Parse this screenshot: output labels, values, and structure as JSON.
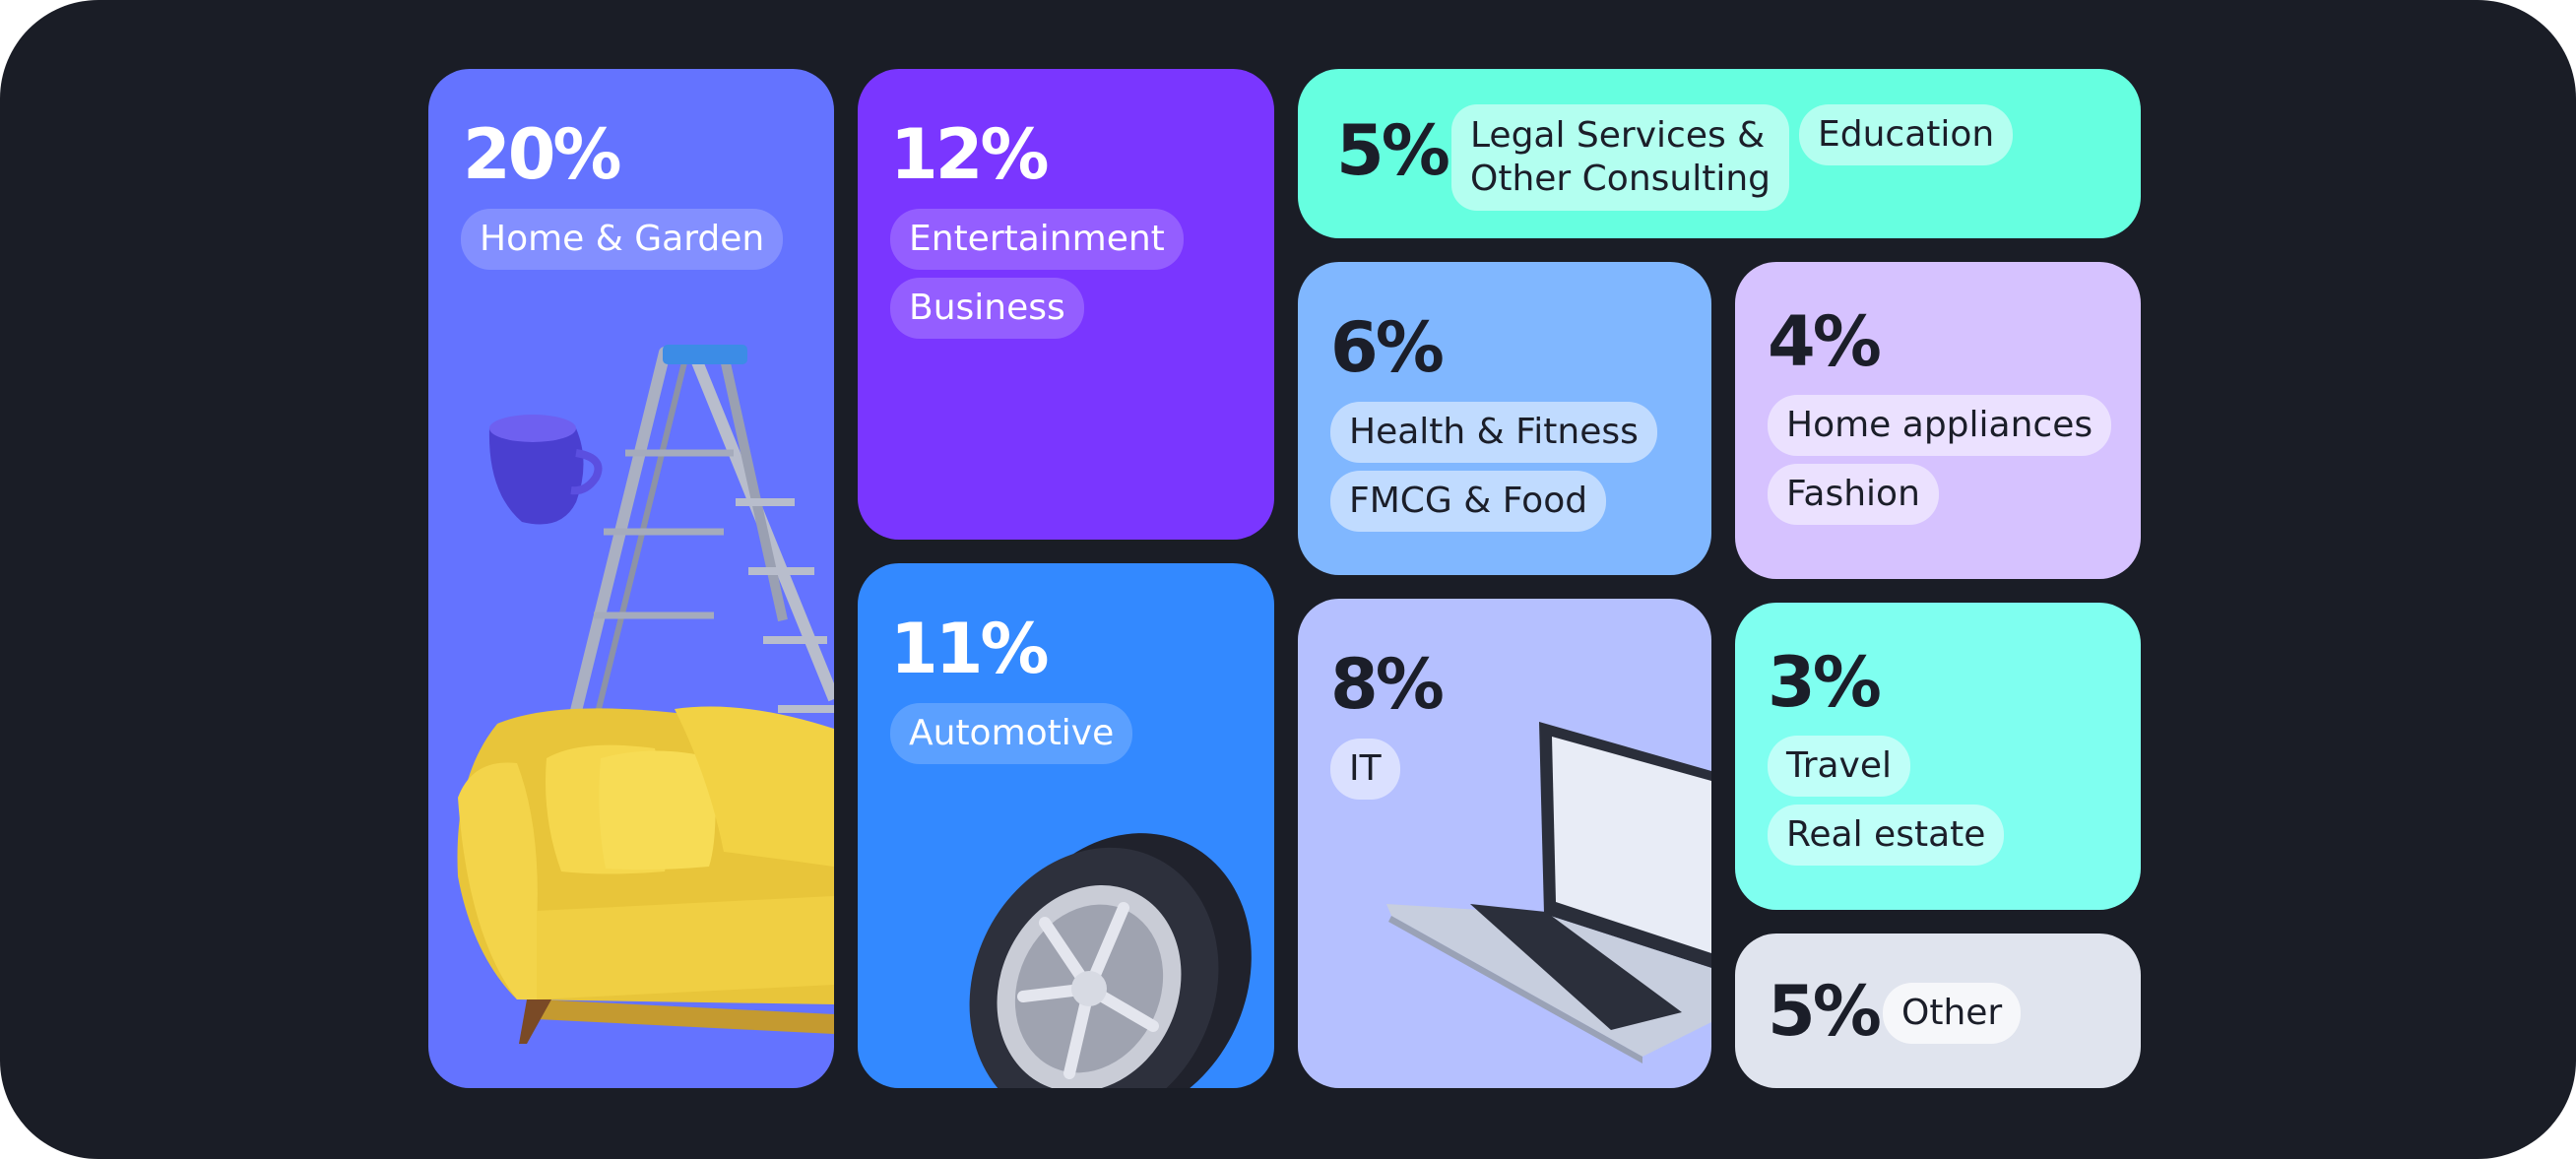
{
  "colors": {
    "background": "#1a1d26",
    "home_garden": "#6473ff",
    "entertainment": "#7a36ff",
    "automotive": "#3389ff",
    "legal": "#66ffe0",
    "health": "#80b7ff",
    "home_appliances": "#d6c2ff",
    "it": "#b5c0ff",
    "travel": "#7ffff0",
    "other": "#e0e4ee"
  },
  "categories": [
    {
      "key": "home_garden",
      "percent": "20%",
      "tags": [
        "Home & Garden"
      ],
      "illustration": "sofa-ladder-cup"
    },
    {
      "key": "entertainment",
      "percent": "12%",
      "tags": [
        "Entertainment",
        "Business"
      ]
    },
    {
      "key": "automotive",
      "percent": "11%",
      "tags": [
        "Automotive"
      ],
      "illustration": "tire"
    },
    {
      "key": "legal",
      "percent": "5%",
      "tags": [
        "Legal Services &\nOther Consulting",
        "Education"
      ]
    },
    {
      "key": "health",
      "percent": "6%",
      "tags": [
        "Health & Fitness",
        "FMCG & Food"
      ]
    },
    {
      "key": "home_appliances",
      "percent": "4%",
      "tags": [
        "Home appliances",
        "Fashion"
      ]
    },
    {
      "key": "it",
      "percent": "8%",
      "tags": [
        "IT"
      ],
      "illustration": "laptop"
    },
    {
      "key": "travel",
      "percent": "3%",
      "tags": [
        "Travel",
        "Real estate"
      ]
    },
    {
      "key": "other",
      "percent": "5%",
      "tags": [
        "Other"
      ]
    }
  ]
}
